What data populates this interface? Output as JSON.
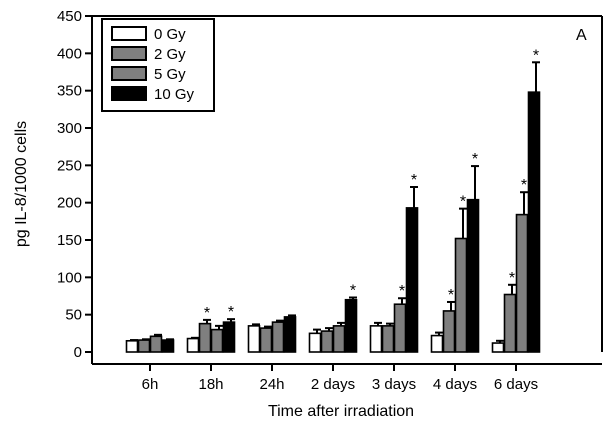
{
  "chart_data": {
    "type": "bar",
    "panel_label": "A",
    "xlabel": "Time after irradiation",
    "ylabel": "pg IL-8/1000 cells",
    "ylim": [
      0,
      450
    ],
    "yticks": [
      0,
      50,
      100,
      150,
      200,
      250,
      300,
      350,
      400,
      450
    ],
    "categories": [
      "6h",
      "18h",
      "24h",
      "2 days",
      "3 days",
      "4 days",
      "6 days"
    ],
    "legend_position": "top-left",
    "series": [
      {
        "name": "0 Gy",
        "fill": "#ffffff",
        "values": [
          15,
          18,
          35,
          25,
          35,
          22,
          12
        ],
        "errors": [
          1,
          1,
          2,
          5,
          4,
          4,
          3
        ],
        "significant": [
          false,
          false,
          false,
          false,
          false,
          false,
          false
        ]
      },
      {
        "name": "2 Gy",
        "fill": "#7f7f7f",
        "values": [
          16,
          38,
          32,
          28,
          35,
          55,
          77
        ],
        "errors": [
          1,
          5,
          2,
          4,
          3,
          12,
          13
        ],
        "significant": [
          false,
          true,
          false,
          false,
          false,
          true,
          true
        ]
      },
      {
        "name": "5 Gy",
        "fill": "#7f7f7f",
        "values": [
          21,
          30,
          40,
          35,
          64,
          152,
          184
        ],
        "errors": [
          2,
          5,
          2,
          4,
          8,
          40,
          30
        ],
        "significant": [
          false,
          false,
          false,
          false,
          true,
          true,
          true
        ]
      },
      {
        "name": "10 Gy",
        "fill": "#000000",
        "values": [
          16,
          40,
          47,
          70,
          193,
          204,
          348
        ],
        "errors": [
          1,
          4,
          2,
          3,
          28,
          45,
          40
        ],
        "significant": [
          false,
          true,
          false,
          true,
          true,
          true,
          true
        ]
      }
    ],
    "significance_mark": "*"
  }
}
